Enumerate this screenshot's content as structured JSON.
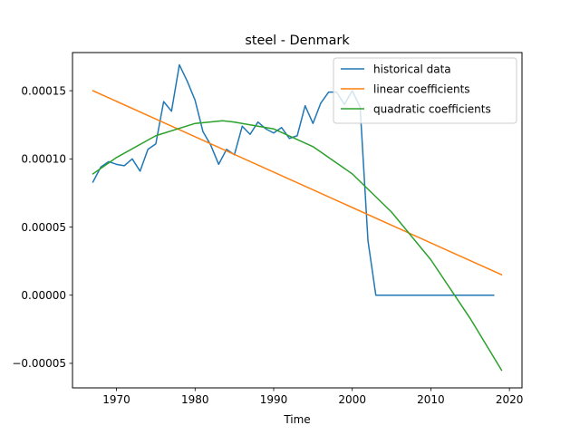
{
  "chart_data": {
    "type": "line",
    "title": "steel - Denmark",
    "xlabel": "Time",
    "ylabel": "",
    "xlim": [
      1964.4,
      2021.6
    ],
    "ylim": [
      -6.8e-05,
      0.000178
    ],
    "xticks": [
      1970,
      1980,
      1990,
      2000,
      2010,
      2020
    ],
    "xtick_labels": [
      "1970",
      "1980",
      "1990",
      "2000",
      "2010",
      "2020"
    ],
    "yticks": [
      -5e-05,
      0.0,
      5e-05,
      0.0001,
      0.00015
    ],
    "ytick_labels": [
      "−0.00005",
      "0.00000",
      "0.00005",
      "0.00010",
      "0.00015"
    ],
    "grid": false,
    "legend_position": "top-right",
    "series": [
      {
        "name": "historical data",
        "color": "#1f77b4",
        "x": [
          1967,
          1968,
          1969,
          1970,
          1971,
          1972,
          1973,
          1974,
          1975,
          1976,
          1977,
          1978,
          1979,
          1980,
          1981,
          1982,
          1983,
          1984,
          1985,
          1986,
          1987,
          1988,
          1989,
          1990,
          1991,
          1992,
          1993,
          1994,
          1995,
          1996,
          1997,
          1998,
          1999,
          2000,
          2001,
          2002,
          2003,
          2004,
          2005,
          2006,
          2007,
          2008,
          2009,
          2010,
          2011,
          2012,
          2013,
          2014,
          2015,
          2016,
          2017,
          2018
        ],
        "y": [
          8.3e-05,
          9.4e-05,
          9.8e-05,
          9.6e-05,
          9.5e-05,
          0.0001,
          9.1e-05,
          0.000107,
          0.000111,
          0.000142,
          0.000135,
          0.000169,
          0.000157,
          0.000143,
          0.00012,
          0.00011,
          9.6e-05,
          0.000107,
          0.000103,
          0.000124,
          0.000118,
          0.000127,
          0.000122,
          0.000119,
          0.000123,
          0.000115,
          0.000117,
          0.000139,
          0.000126,
          0.000141,
          0.000149,
          0.000149,
          0.00014,
          0.00015,
          0.000138,
          4e-05,
          0.0,
          0.0,
          0.0,
          0.0,
          0.0,
          0.0,
          0.0,
          0.0,
          0.0,
          0.0,
          0.0,
          0.0,
          0.0,
          0.0,
          0.0,
          0.0
        ]
      },
      {
        "name": "linear coefficients",
        "color": "#ff7f0e",
        "x": [
          1967,
          2019
        ],
        "y": [
          0.00015,
          1.5e-05
        ]
      },
      {
        "name": "quadratic coefficients",
        "color": "#2ca02c",
        "x": [
          1967,
          1970,
          1975,
          1980,
          1983.5,
          1985,
          1990,
          1995,
          2000,
          2005,
          2010,
          2015,
          2019
        ],
        "y": [
          8.9e-05,
          0.000101,
          0.000117,
          0.000126,
          0.000128,
          0.000127,
          0.000122,
          0.000109,
          8.9e-05,
          6.1e-05,
          2.6e-05,
          -1.7e-05,
          -5.5e-05
        ]
      }
    ]
  }
}
